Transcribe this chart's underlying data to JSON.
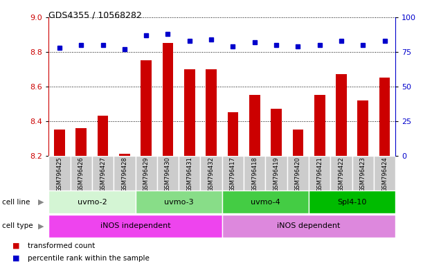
{
  "title": "GDS4355 / 10568282",
  "samples": [
    "GSM796425",
    "GSM796426",
    "GSM796427",
    "GSM796428",
    "GSM796429",
    "GSM796430",
    "GSM796431",
    "GSM796432",
    "GSM796417",
    "GSM796418",
    "GSM796419",
    "GSM796420",
    "GSM796421",
    "GSM796422",
    "GSM796423",
    "GSM796424"
  ],
  "transformed_count": [
    8.35,
    8.36,
    8.43,
    8.21,
    8.75,
    8.85,
    8.7,
    8.7,
    8.45,
    8.55,
    8.47,
    8.35,
    8.55,
    8.67,
    8.52,
    8.65
  ],
  "percentile_rank": [
    78,
    80,
    80,
    77,
    87,
    88,
    83,
    84,
    79,
    82,
    80,
    79,
    80,
    83,
    80,
    83
  ],
  "ylim_left": [
    8.2,
    9.0
  ],
  "ylim_right": [
    0,
    100
  ],
  "yticks_left": [
    8.2,
    8.4,
    8.6,
    8.8,
    9.0
  ],
  "yticks_right": [
    0,
    25,
    50,
    75,
    100
  ],
  "cell_lines": [
    {
      "label": "uvmo-2",
      "start": 0,
      "end": 4,
      "color": "#d4f5d4"
    },
    {
      "label": "uvmo-3",
      "start": 4,
      "end": 8,
      "color": "#88dd88"
    },
    {
      "label": "uvmo-4",
      "start": 8,
      "end": 12,
      "color": "#44cc44"
    },
    {
      "label": "Spl4-10",
      "start": 12,
      "end": 16,
      "color": "#00bb00"
    }
  ],
  "cell_types": [
    {
      "label": "iNOS independent",
      "start": 0,
      "end": 8,
      "color": "#ee44ee"
    },
    {
      "label": "iNOS dependent",
      "start": 8,
      "end": 16,
      "color": "#dd88dd"
    }
  ],
  "bar_color": "#cc0000",
  "dot_color": "#0000cc",
  "left_axis_color": "#cc0000",
  "right_axis_color": "#0000cc",
  "bar_bottom": 8.2,
  "label_bg_color": "#cccccc",
  "sample_box_color": "#cccccc"
}
